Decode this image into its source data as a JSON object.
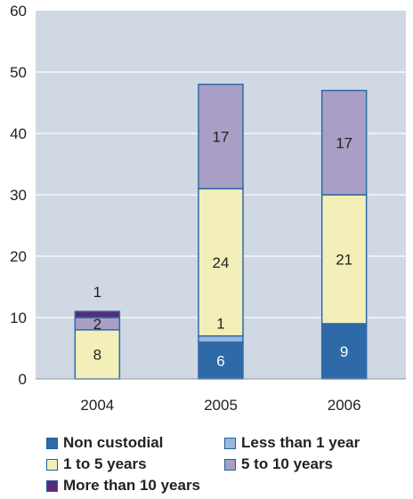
{
  "chart_data": {
    "type": "bar",
    "stacked": true,
    "categories": [
      "2004",
      "2005",
      "2006"
    ],
    "series": [
      {
        "name": "Non custodial",
        "color": "#2e6aa8",
        "values": [
          0,
          6,
          9
        ],
        "labels": [
          "",
          "6",
          "9"
        ]
      },
      {
        "name": "Less than 1 year",
        "color": "#9ab8dc",
        "values": [
          0,
          1,
          0
        ],
        "labels": [
          "",
          "1",
          ""
        ]
      },
      {
        "name": "1 to 5 years",
        "color": "#f2efb8",
        "values": [
          8,
          24,
          21
        ],
        "labels": [
          "8",
          "24",
          "21"
        ]
      },
      {
        "name": "5 to 10 years",
        "color": "#a99ec4",
        "values": [
          2,
          17,
          17
        ],
        "labels": [
          "2",
          "17",
          "17"
        ]
      },
      {
        "name": "More than 10 years",
        "color": "#5a2a7a",
        "values": [
          1,
          0,
          0
        ],
        "labels": [
          "1",
          "",
          ""
        ]
      }
    ],
    "ylim": [
      0,
      60
    ],
    "yticks": [
      "0",
      "10",
      "20",
      "30",
      "40",
      "50",
      "60"
    ],
    "grid": true,
    "legend_position": "bottom",
    "plot_background": "#cfd8e3",
    "grid_color": "#ffffff",
    "bar_border_color": "#2e6aa8"
  }
}
